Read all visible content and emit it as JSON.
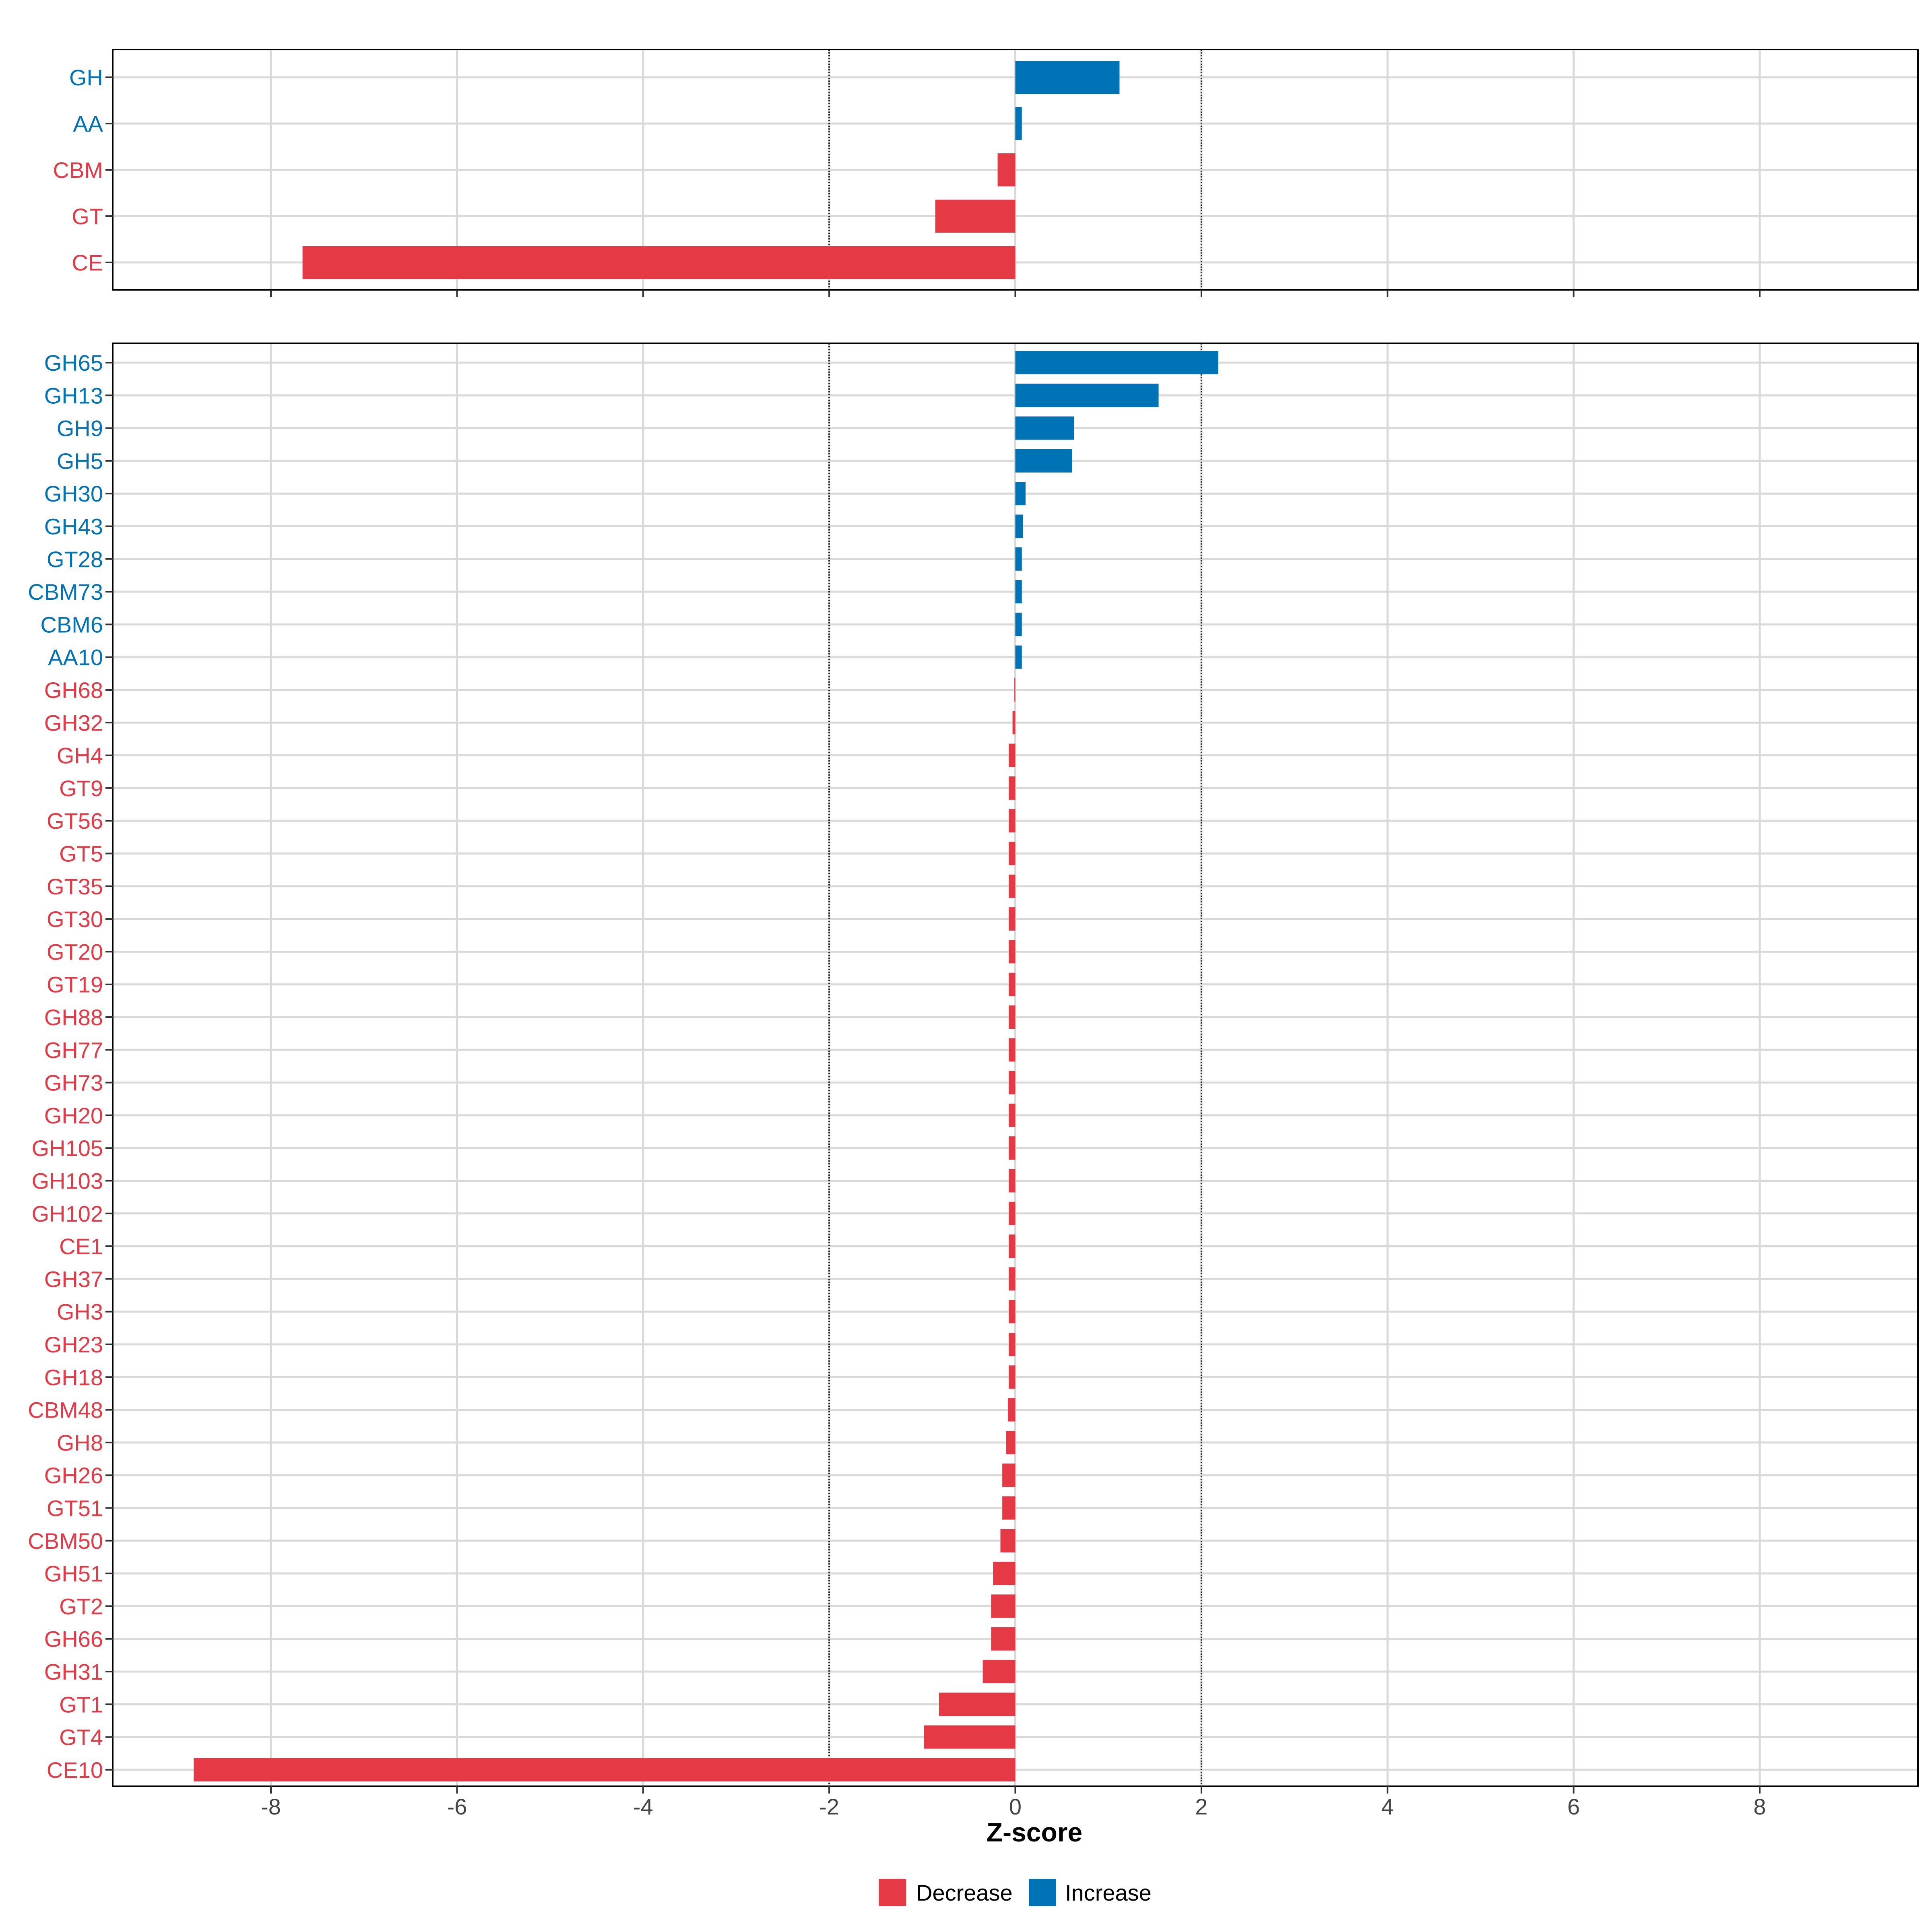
{
  "chart_data": [
    {
      "type": "bar",
      "orientation": "horizontal",
      "panel": "top",
      "categories": [
        "GH",
        "AA",
        "CBM",
        "GT",
        "CE"
      ],
      "values": [
        1.12,
        0.07,
        -0.19,
        -0.86,
        -7.66
      ],
      "xlim": [
        -9.7,
        9.7
      ],
      "grid": true,
      "reference_lines": [
        -2,
        2
      ]
    },
    {
      "type": "bar",
      "orientation": "horizontal",
      "panel": "bottom",
      "categories": [
        "GH65",
        "GH13",
        "GH9",
        "GH5",
        "GH30",
        "GH43",
        "GT28",
        "CBM73",
        "CBM6",
        "AA10",
        "GH68",
        "GH32",
        "GH4",
        "GT9",
        "GT56",
        "GT5",
        "GT35",
        "GT30",
        "GT20",
        "GT19",
        "GH88",
        "GH77",
        "GH73",
        "GH20",
        "GH105",
        "GH103",
        "GH102",
        "CE1",
        "GH37",
        "GH3",
        "GH23",
        "GH18",
        "CBM48",
        "GH8",
        "GH26",
        "GT51",
        "CBM50",
        "GH51",
        "GT2",
        "GH66",
        "GH31",
        "GT1",
        "GT4",
        "CE10"
      ],
      "values": [
        2.18,
        1.54,
        0.63,
        0.61,
        0.11,
        0.08,
        0.07,
        0.07,
        0.07,
        0.07,
        -0.01,
        -0.03,
        -0.07,
        -0.07,
        -0.07,
        -0.07,
        -0.07,
        -0.07,
        -0.07,
        -0.07,
        -0.07,
        -0.07,
        -0.07,
        -0.07,
        -0.07,
        -0.07,
        -0.07,
        -0.07,
        -0.07,
        -0.07,
        -0.07,
        -0.07,
        -0.08,
        -0.1,
        -0.14,
        -0.14,
        -0.16,
        -0.24,
        -0.26,
        -0.26,
        -0.35,
        -0.82,
        -0.98,
        -8.83
      ],
      "xlim": [
        -9.7,
        9.7
      ],
      "grid": true,
      "reference_lines": [
        -2,
        2
      ],
      "xticks": [
        -8,
        -6,
        -4,
        -2,
        0,
        2,
        4,
        6,
        8
      ],
      "xtick_labels": [
        "-8",
        "-6",
        "-4",
        "-2",
        "0",
        "2",
        "4",
        "6",
        "8"
      ],
      "xlabel": "Z-score"
    }
  ],
  "legend": {
    "placement": "bottom-center",
    "items": [
      {
        "label": "Decrease",
        "color": "#E63946"
      },
      {
        "label": "Increase",
        "color": "#0073B7"
      }
    ]
  },
  "colors": {
    "decrease": "#E63946",
    "increase": "#0073B7",
    "grid": "#D9D9D9",
    "axis_text": "#444444",
    "frame": "#000000"
  }
}
